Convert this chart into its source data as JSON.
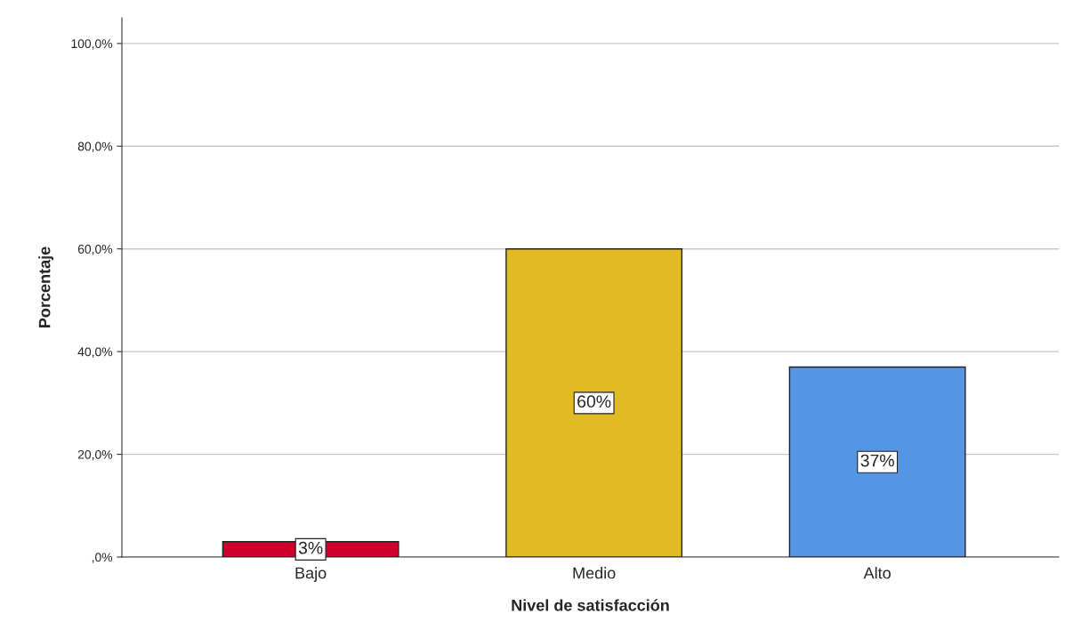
{
  "chart_data": {
    "type": "bar",
    "xlabel": "Nivel de satisfacción",
    "ylabel": "Porcentaje",
    "categories": [
      "Bajo",
      "Medio",
      "Alto"
    ],
    "values": [
      3,
      60,
      37
    ],
    "colors": [
      "#d0002d",
      "#e1bb22",
      "#5596e4"
    ],
    "value_labels": [
      "3%",
      "60%",
      "37%"
    ],
    "ylim": [
      0,
      105
    ],
    "yticks": [
      {
        "value": 0,
        "label": ",0%"
      },
      {
        "value": 20,
        "label": "20,0%"
      },
      {
        "value": 40,
        "label": "40,0%"
      },
      {
        "value": 60,
        "label": "60,0%"
      },
      {
        "value": 80,
        "label": "80,0%"
      },
      {
        "value": 100,
        "label": "100,0%"
      }
    ],
    "grid": "y",
    "legend": false
  }
}
